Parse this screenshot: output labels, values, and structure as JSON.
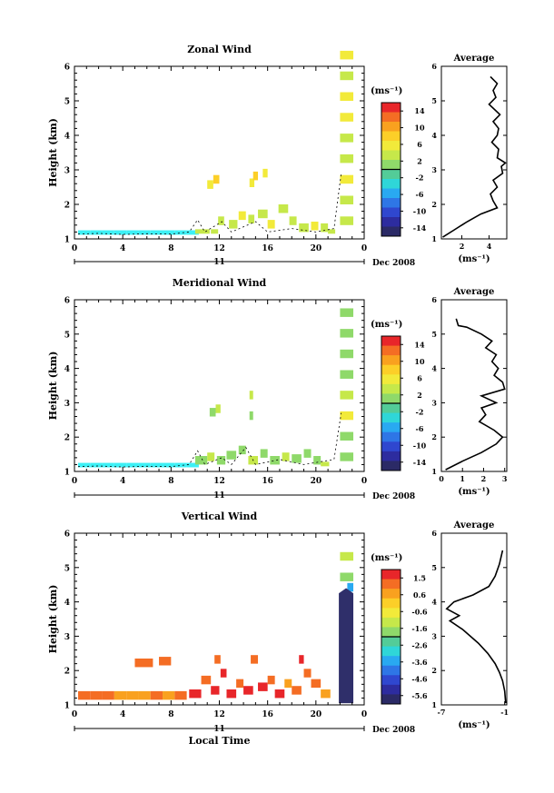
{
  "colors": {
    "colorbar": [
      "#e8262a",
      "#f46d24",
      "#f9a11f",
      "#fccf28",
      "#f2ea3a",
      "#c6e84a",
      "#8fd96a",
      "#53cc98",
      "#2fd6d8",
      "#29a9f1",
      "#2e76e6",
      "#2f47cf",
      "#2d2c9f",
      "#2b2a66"
    ],
    "cyan_echo": "#3cf0f5",
    "dark_band": "#2f2f6a"
  },
  "chart_data": [
    {
      "type": "heatmap",
      "title": "Zonal Wind",
      "xlabel": "",
      "ylabel": "Height (km)",
      "x_ticks": [
        "0",
        "4",
        "8",
        "12",
        "16",
        "20",
        "0"
      ],
      "y_ticks": [
        "1",
        "2",
        "3",
        "4",
        "5",
        "6"
      ],
      "xlim": [
        0,
        24
      ],
      "ylim": [
        1,
        6
      ],
      "date_day": "11",
      "date_label": "Dec 2008",
      "colorbar": {
        "unit": "(ms⁻¹)",
        "ticks": [
          "14",
          "10",
          "6",
          "2",
          "-2",
          "-6",
          "-10",
          "-14"
        ],
        "range": [
          -16,
          16
        ]
      },
      "cells": [
        [
          0.3,
          1.12,
          1.0,
          -1
        ],
        [
          1.3,
          1.12,
          1.0,
          -1
        ],
        [
          2.3,
          1.12,
          1.0,
          -1
        ],
        [
          3.3,
          1.12,
          1.0,
          -1
        ],
        [
          4.3,
          1.12,
          1.0,
          -1
        ],
        [
          5.3,
          1.12,
          1.0,
          -1
        ],
        [
          6.3,
          1.12,
          1.0,
          -1
        ],
        [
          7.3,
          1.12,
          1.0,
          -1
        ],
        [
          8.3,
          1.12,
          1.0,
          -1
        ],
        [
          9.3,
          1.12,
          1.0,
          -1
        ],
        [
          10.0,
          1.15,
          1.2,
          3
        ],
        [
          11.3,
          1.15,
          0.6,
          4
        ],
        [
          11.9,
          1.4,
          0.5,
          3
        ],
        [
          12.8,
          1.3,
          0.7,
          3
        ],
        [
          13.6,
          1.55,
          0.6,
          5
        ],
        [
          14.4,
          1.45,
          0.5,
          3
        ],
        [
          15.2,
          1.6,
          0.8,
          4
        ],
        [
          16.0,
          1.3,
          0.6,
          6
        ],
        [
          16.9,
          1.75,
          0.8,
          3
        ],
        [
          17.8,
          1.4,
          0.6,
          4
        ],
        [
          18.6,
          1.2,
          0.8,
          3
        ],
        [
          19.6,
          1.25,
          0.6,
          5
        ],
        [
          20.4,
          1.2,
          0.6,
          3
        ],
        [
          21.0,
          1.15,
          0.6,
          4
        ],
        [
          11.0,
          2.45,
          0.5,
          6
        ],
        [
          11.5,
          2.6,
          0.5,
          7
        ],
        [
          14.5,
          2.5,
          0.4,
          6
        ],
        [
          14.8,
          2.7,
          0.4,
          7
        ],
        [
          15.6,
          2.78,
          0.4,
          6
        ],
        [
          22.0,
          1.4,
          1.1,
          3
        ],
        [
          22.0,
          2.0,
          1.1,
          4
        ],
        [
          22.0,
          2.6,
          1.1,
          5
        ],
        [
          22.0,
          3.2,
          1.1,
          3
        ],
        [
          22.0,
          3.8,
          1.1,
          4
        ],
        [
          22.0,
          4.4,
          1.1,
          6
        ],
        [
          22.0,
          5.0,
          1.1,
          5
        ],
        [
          22.0,
          5.6,
          1.1,
          4
        ],
        [
          22.0,
          6.2,
          1.1,
          6
        ]
      ],
      "contours": [
        [
          0.3,
          1.14
        ],
        [
          2,
          1.16
        ],
        [
          4,
          1.13
        ],
        [
          6,
          1.15
        ],
        [
          8,
          1.14
        ],
        [
          9.5,
          1.2
        ],
        [
          10.2,
          1.55
        ],
        [
          10.8,
          1.2
        ],
        [
          12.2,
          1.5
        ],
        [
          13,
          1.2
        ],
        [
          15,
          1.5
        ],
        [
          16,
          1.2
        ],
        [
          18,
          1.3
        ],
        [
          20,
          1.2
        ],
        [
          21.5,
          1.3
        ],
        [
          22.1,
          2.9
        ]
      ],
      "average": {
        "title": "Average",
        "xlabel": "(ms⁻¹)",
        "x_ticks": [
          "2",
          "4"
        ],
        "x_tick_values": [
          2,
          4
        ],
        "xlim": [
          0.5,
          5.3
        ],
        "y_ticks": [
          "1",
          "2",
          "3",
          "4",
          "5",
          "6"
        ],
        "ylim": [
          1,
          6
        ],
        "profile": [
          [
            0.6,
            1.05
          ],
          [
            1.4,
            1.25
          ],
          [
            2.4,
            1.5
          ],
          [
            3.4,
            1.72
          ],
          [
            4.6,
            1.9
          ],
          [
            4.3,
            2.1
          ],
          [
            4.1,
            2.3
          ],
          [
            4.6,
            2.5
          ],
          [
            4.3,
            2.7
          ],
          [
            5.0,
            2.9
          ],
          [
            4.9,
            3.1
          ],
          [
            5.2,
            3.2
          ],
          [
            4.6,
            3.35
          ],
          [
            4.7,
            3.6
          ],
          [
            4.2,
            3.8
          ],
          [
            4.6,
            4.0
          ],
          [
            4.7,
            4.2
          ],
          [
            4.3,
            4.4
          ],
          [
            4.8,
            4.6
          ],
          [
            4.0,
            4.9
          ],
          [
            4.5,
            5.1
          ],
          [
            4.3,
            5.3
          ],
          [
            4.6,
            5.5
          ],
          [
            4.1,
            5.7
          ]
        ]
      }
    },
    {
      "type": "heatmap",
      "title": "Meridional Wind",
      "xlabel": "",
      "ylabel": "Height (km)",
      "x_ticks": [
        "0",
        "4",
        "8",
        "12",
        "16",
        "20",
        "0"
      ],
      "y_ticks": [
        "1",
        "2",
        "3",
        "4",
        "5",
        "6"
      ],
      "xlim": [
        0,
        24
      ],
      "ylim": [
        1,
        6
      ],
      "date_day": "11",
      "date_label": "Dec 2008",
      "colorbar": {
        "unit": "(ms⁻¹)",
        "ticks": [
          "14",
          "10",
          "6",
          "2",
          "-2",
          "-6",
          "-10",
          "-14"
        ],
        "range": [
          -16,
          16
        ]
      },
      "cells": [
        [
          0.3,
          1.12,
          1.0,
          -1
        ],
        [
          1.3,
          1.12,
          1.0,
          -1
        ],
        [
          2.3,
          1.12,
          1.0,
          -1
        ],
        [
          3.3,
          1.12,
          1.0,
          -1
        ],
        [
          4.3,
          1.12,
          1.0,
          -1
        ],
        [
          5.3,
          1.12,
          1.0,
          -1
        ],
        [
          6.3,
          1.12,
          1.0,
          -1
        ],
        [
          7.3,
          1.12,
          1.0,
          -1
        ],
        [
          8.3,
          1.12,
          1.0,
          -1
        ],
        [
          9.3,
          1.12,
          1.0,
          -1
        ],
        [
          10.0,
          1.2,
          1.0,
          1
        ],
        [
          11.0,
          1.3,
          0.6,
          3
        ],
        [
          11.8,
          1.2,
          0.7,
          1
        ],
        [
          12.6,
          1.35,
          0.8,
          2
        ],
        [
          13.6,
          1.5,
          0.6,
          1
        ],
        [
          14.4,
          1.2,
          0.8,
          3
        ],
        [
          15.4,
          1.4,
          0.6,
          2
        ],
        [
          16.2,
          1.2,
          0.8,
          1
        ],
        [
          17.2,
          1.3,
          0.6,
          3
        ],
        [
          18.0,
          1.25,
          0.8,
          2
        ],
        [
          19.0,
          1.4,
          0.6,
          1
        ],
        [
          19.8,
          1.2,
          0.6,
          2
        ],
        [
          20.4,
          1.15,
          0.7,
          3
        ],
        [
          11.2,
          2.6,
          0.5,
          2
        ],
        [
          11.7,
          2.7,
          0.4,
          3
        ],
        [
          14.5,
          2.5,
          0.3,
          2
        ],
        [
          14.5,
          3.1,
          0.3,
          3
        ],
        [
          22.0,
          1.3,
          1.1,
          1
        ],
        [
          22.0,
          1.9,
          1.1,
          2
        ],
        [
          22.0,
          2.5,
          1.1,
          5
        ],
        [
          22.0,
          3.1,
          1.1,
          4
        ],
        [
          22.0,
          3.7,
          1.1,
          2
        ],
        [
          22.0,
          4.3,
          1.1,
          1
        ],
        [
          22.0,
          4.9,
          1.1,
          2
        ],
        [
          22.0,
          5.5,
          1.1,
          1
        ]
      ],
      "contours": [
        [
          0.3,
          1.14
        ],
        [
          2,
          1.16
        ],
        [
          4,
          1.13
        ],
        [
          6,
          1.15
        ],
        [
          8,
          1.14
        ],
        [
          9.5,
          1.2
        ],
        [
          10.2,
          1.6
        ],
        [
          10.8,
          1.2
        ],
        [
          12.2,
          1.4
        ],
        [
          13,
          1.2
        ],
        [
          14.2,
          1.7
        ],
        [
          15,
          1.2
        ],
        [
          17,
          1.35
        ],
        [
          19,
          1.2
        ],
        [
          21.5,
          1.35
        ],
        [
          22.1,
          2.7
        ]
      ],
      "average": {
        "title": "Average",
        "xlabel": "(ms⁻¹)",
        "x_ticks": [
          "0",
          "1",
          "2",
          "3"
        ],
        "x_tick_values": [
          0,
          1,
          2,
          3
        ],
        "xlim": [
          0,
          3.1
        ],
        "y_ticks": [
          "1",
          "2",
          "3",
          "4",
          "5",
          "6"
        ],
        "ylim": [
          1,
          6
        ],
        "profile": [
          [
            0.2,
            1.05
          ],
          [
            1.0,
            1.3
          ],
          [
            1.9,
            1.55
          ],
          [
            2.6,
            1.8
          ],
          [
            2.9,
            2.0
          ],
          [
            2.5,
            2.2
          ],
          [
            1.8,
            2.45
          ],
          [
            2.1,
            2.65
          ],
          [
            1.9,
            2.85
          ],
          [
            2.6,
            3.0
          ],
          [
            1.9,
            3.2
          ],
          [
            3.0,
            3.4
          ],
          [
            2.9,
            3.6
          ],
          [
            2.5,
            3.8
          ],
          [
            2.7,
            4.0
          ],
          [
            2.4,
            4.2
          ],
          [
            2.6,
            4.4
          ],
          [
            2.1,
            4.6
          ],
          [
            2.4,
            4.8
          ],
          [
            1.9,
            5.0
          ],
          [
            1.2,
            5.2
          ],
          [
            0.8,
            5.25
          ],
          [
            0.7,
            5.45
          ]
        ]
      }
    },
    {
      "type": "heatmap",
      "title": "Vertical Wind",
      "xlabel": "Local Time",
      "ylabel": "Height (km)",
      "x_ticks": [
        "0",
        "4",
        "8",
        "12",
        "16",
        "20",
        "0"
      ],
      "y_ticks": [
        "1",
        "2",
        "3",
        "4",
        "5",
        "6"
      ],
      "xlim": [
        0,
        24
      ],
      "ylim": [
        1,
        6
      ],
      "date_day": "11",
      "date_label": "Dec 2008",
      "colorbar": {
        "unit": "(ms⁻¹)",
        "ticks": [
          "1.5",
          "0.6",
          "-0.6",
          "-1.6",
          "-2.6",
          "-3.6",
          "-4.6",
          "-5.6"
        ],
        "range": [
          -6.1,
          2.0
        ]
      },
      "cells": [
        [
          0.3,
          1.15,
          1.0,
          1.0
        ],
        [
          1.3,
          1.15,
          1.0,
          0.9
        ],
        [
          2.3,
          1.15,
          1.0,
          1.0
        ],
        [
          3.3,
          1.15,
          1.0,
          0.8
        ],
        [
          4.3,
          1.15,
          1.0,
          0.5
        ],
        [
          5.3,
          1.15,
          1.0,
          0.7
        ],
        [
          6.3,
          1.15,
          1.0,
          0.9
        ],
        [
          7.3,
          1.15,
          1.0,
          0.6
        ],
        [
          8.3,
          1.15,
          1.0,
          1.0
        ],
        [
          5.0,
          2.1,
          1.5,
          0.9
        ],
        [
          7.0,
          2.15,
          1.0,
          1.0
        ],
        [
          9.5,
          1.2,
          1.0,
          1.6
        ],
        [
          10.5,
          1.6,
          0.8,
          1.2
        ],
        [
          11.3,
          1.3,
          0.7,
          1.8
        ],
        [
          11.6,
          2.2,
          0.5,
          0.9
        ],
        [
          12.1,
          1.8,
          0.5,
          1.5
        ],
        [
          12.6,
          1.2,
          0.8,
          1.6
        ],
        [
          13.4,
          1.5,
          0.6,
          1.0
        ],
        [
          14.0,
          1.3,
          0.8,
          1.8
        ],
        [
          14.6,
          2.2,
          0.6,
          1.2
        ],
        [
          15.2,
          1.4,
          0.8,
          1.7
        ],
        [
          16.0,
          1.6,
          0.6,
          1.0
        ],
        [
          16.6,
          1.2,
          0.8,
          1.5
        ],
        [
          17.4,
          1.5,
          0.6,
          0.8
        ],
        [
          18.0,
          1.3,
          0.8,
          1.2
        ],
        [
          18.6,
          2.2,
          0.4,
          1.6
        ],
        [
          19.0,
          1.8,
          0.6,
          0.9
        ],
        [
          19.6,
          1.5,
          0.8,
          1.1
        ],
        [
          20.4,
          1.2,
          0.8,
          0.7
        ],
        [
          22.0,
          4.6,
          1.1,
          -1.5
        ],
        [
          22.0,
          5.2,
          1.1,
          -1.0
        ],
        [
          22.6,
          4.3,
          0.5,
          -3.5
        ]
      ],
      "dark_band": [
        [
          21.9,
          1.05
        ],
        [
          23.1,
          1.05
        ],
        [
          23.1,
          4.25
        ],
        [
          22.5,
          4.4
        ],
        [
          21.9,
          4.25
        ]
      ],
      "contours": [],
      "average": {
        "title": "Average",
        "xlabel": "(ms⁻¹)",
        "x_ticks": [
          "-7",
          "-1"
        ],
        "x_tick_values": [
          -7,
          -1
        ],
        "xlim": [
          -7,
          -0.8
        ],
        "y_ticks": [
          "1",
          "2",
          "3",
          "4",
          "5",
          "6"
        ],
        "ylim": [
          1,
          6
        ],
        "profile": [
          [
            -0.9,
            1.05
          ],
          [
            -1.0,
            1.4
          ],
          [
            -1.2,
            1.7
          ],
          [
            -1.5,
            1.95
          ],
          [
            -1.9,
            2.2
          ],
          [
            -2.6,
            2.5
          ],
          [
            -3.5,
            2.8
          ],
          [
            -5.0,
            3.2
          ],
          [
            -6.2,
            3.45
          ],
          [
            -5.3,
            3.6
          ],
          [
            -6.5,
            3.8
          ],
          [
            -5.8,
            4.0
          ],
          [
            -4.0,
            4.2
          ],
          [
            -2.5,
            4.45
          ],
          [
            -1.9,
            4.75
          ],
          [
            -1.5,
            5.1
          ],
          [
            -1.2,
            5.5
          ]
        ]
      }
    }
  ]
}
